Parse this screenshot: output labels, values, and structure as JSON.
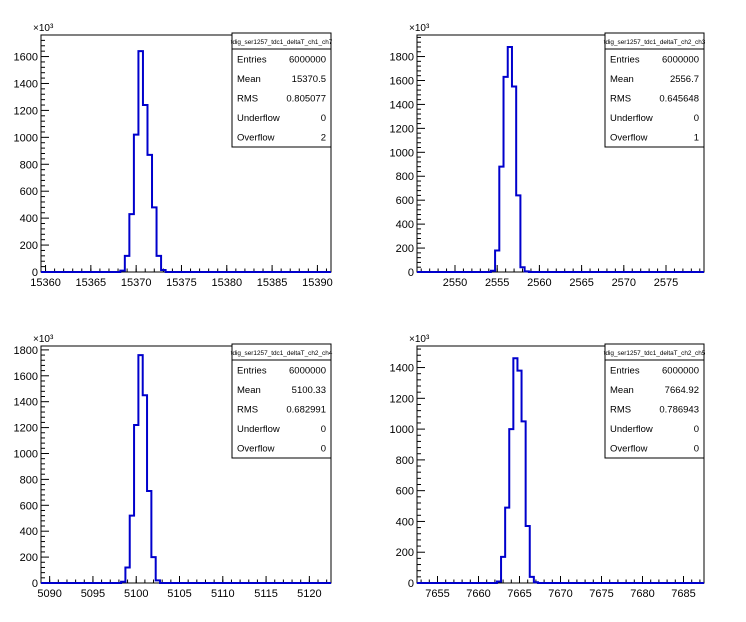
{
  "chart_data": [
    {
      "type": "histogram",
      "title": "tdig_ser1257_tdc1_deltaT_ch1_ch7",
      "y_multiplier_label": "×10³",
      "xlim": [
        15359.5,
        15391.5
      ],
      "ylim": [
        0,
        1760
      ],
      "x_ticks": [
        15360,
        15365,
        15370,
        15375,
        15380,
        15385,
        15390
      ],
      "y_ticks": [
        0,
        200,
        400,
        600,
        800,
        1000,
        1200,
        1400,
        1600
      ],
      "y_tick_labels": [
        "0",
        "200",
        "400",
        "600",
        "800",
        "1000",
        "1200",
        "1400",
        "1600"
      ],
      "bin_width": 0.5,
      "bins": [
        {
          "x": 15368.5,
          "y": 10
        },
        {
          "x": 15369.0,
          "y": 120
        },
        {
          "x": 15369.5,
          "y": 430
        },
        {
          "x": 15370.0,
          "y": 1020
        },
        {
          "x": 15370.5,
          "y": 1640
        },
        {
          "x": 15371.0,
          "y": 1240
        },
        {
          "x": 15371.5,
          "y": 870
        },
        {
          "x": 15372.0,
          "y": 480
        },
        {
          "x": 15372.5,
          "y": 120
        },
        {
          "x": 15373.0,
          "y": 15
        }
      ],
      "stats": [
        {
          "label": "Entries",
          "value": "6000000"
        },
        {
          "label": "Mean",
          "value": "15370.5"
        },
        {
          "label": "RMS",
          "value": "0.805077"
        },
        {
          "label": "Underflow",
          "value": "0"
        },
        {
          "label": "Overflow",
          "value": "2"
        }
      ]
    },
    {
      "type": "histogram",
      "title": "tdig_ser1257_tdc1_deltaT_ch2_ch3",
      "y_multiplier_label": "×10³",
      "xlim": [
        2545.5,
        2579.5
      ],
      "ylim": [
        0,
        1980
      ],
      "x_ticks": [
        2550,
        2555,
        2560,
        2565,
        2570,
        2575
      ],
      "y_ticks": [
        0,
        200,
        400,
        600,
        800,
        1000,
        1200,
        1400,
        1600,
        1800
      ],
      "y_tick_labels": [
        "0",
        "200",
        "400",
        "600",
        "800",
        "1000",
        "1200",
        "1400",
        "1600",
        "1800"
      ],
      "bin_width": 0.5,
      "bins": [
        {
          "x": 2554.5,
          "y": 10
        },
        {
          "x": 2555.0,
          "y": 180
        },
        {
          "x": 2555.5,
          "y": 880
        },
        {
          "x": 2556.0,
          "y": 1630
        },
        {
          "x": 2556.5,
          "y": 1880
        },
        {
          "x": 2557.0,
          "y": 1550
        },
        {
          "x": 2557.5,
          "y": 640
        },
        {
          "x": 2558.0,
          "y": 40
        },
        {
          "x": 2558.5,
          "y": 5
        }
      ],
      "stats": [
        {
          "label": "Entries",
          "value": "6000000"
        },
        {
          "label": "Mean",
          "value": "2556.7"
        },
        {
          "label": "RMS",
          "value": "0.645648"
        },
        {
          "label": "Underflow",
          "value": "0"
        },
        {
          "label": "Overflow",
          "value": "1"
        }
      ]
    },
    {
      "type": "histogram",
      "title": "tdig_ser1257_tdc1_deltaT_ch2_ch4",
      "y_multiplier_label": "×10³",
      "xlim": [
        5089,
        5122.5
      ],
      "ylim": [
        0,
        1830
      ],
      "x_ticks": [
        5090,
        5095,
        5100,
        5105,
        5110,
        5115,
        5120
      ],
      "y_ticks": [
        0,
        200,
        400,
        600,
        800,
        1000,
        1200,
        1400,
        1600,
        1800
      ],
      "y_tick_labels": [
        "0",
        "200",
        "400",
        "600",
        "800",
        "1000",
        "1200",
        "1400",
        "1600",
        "1800"
      ],
      "bin_width": 0.5,
      "bins": [
        {
          "x": 5098.5,
          "y": 10
        },
        {
          "x": 5099.0,
          "y": 120
        },
        {
          "x": 5099.5,
          "y": 520
        },
        {
          "x": 5100.0,
          "y": 1220
        },
        {
          "x": 5100.5,
          "y": 1760
        },
        {
          "x": 5101.0,
          "y": 1450
        },
        {
          "x": 5101.5,
          "y": 710
        },
        {
          "x": 5102.0,
          "y": 200
        },
        {
          "x": 5102.5,
          "y": 20
        }
      ],
      "stats": [
        {
          "label": "Entries",
          "value": "6000000"
        },
        {
          "label": "Mean",
          "value": "5100.33"
        },
        {
          "label": "RMS",
          "value": "0.682991"
        },
        {
          "label": "Underflow",
          "value": "0"
        },
        {
          "label": "Overflow",
          "value": "0"
        }
      ]
    },
    {
      "type": "histogram",
      "title": "tdig_ser1257_tdc1_deltaT_ch2_ch5",
      "y_multiplier_label": "×10³",
      "xlim": [
        7652.5,
        7687.5
      ],
      "ylim": [
        0,
        1540
      ],
      "x_ticks": [
        7655,
        7660,
        7665,
        7670,
        7675,
        7680,
        7685
      ],
      "y_ticks": [
        0,
        200,
        400,
        600,
        800,
        1000,
        1200,
        1400
      ],
      "y_tick_labels": [
        "0",
        "200",
        "400",
        "600",
        "800",
        "1000",
        "1200",
        "1400"
      ],
      "bin_width": 0.5,
      "bins": [
        {
          "x": 7662.5,
          "y": 10
        },
        {
          "x": 7663.0,
          "y": 170
        },
        {
          "x": 7663.5,
          "y": 490
        },
        {
          "x": 7664.0,
          "y": 1000
        },
        {
          "x": 7664.5,
          "y": 1460
        },
        {
          "x": 7665.0,
          "y": 1380
        },
        {
          "x": 7665.5,
          "y": 1050
        },
        {
          "x": 7666.0,
          "y": 370
        },
        {
          "x": 7666.5,
          "y": 40
        },
        {
          "x": 7667.0,
          "y": 5
        }
      ],
      "stats": [
        {
          "label": "Entries",
          "value": "6000000"
        },
        {
          "label": "Mean",
          "value": "7664.92"
        },
        {
          "label": "RMS",
          "value": "0.786943"
        },
        {
          "label": "Underflow",
          "value": "0"
        },
        {
          "label": "Overflow",
          "value": "0"
        }
      ]
    }
  ],
  "colors": {
    "histogram_line": "#0000cc",
    "axis": "#000000",
    "background": "#ffffff"
  }
}
